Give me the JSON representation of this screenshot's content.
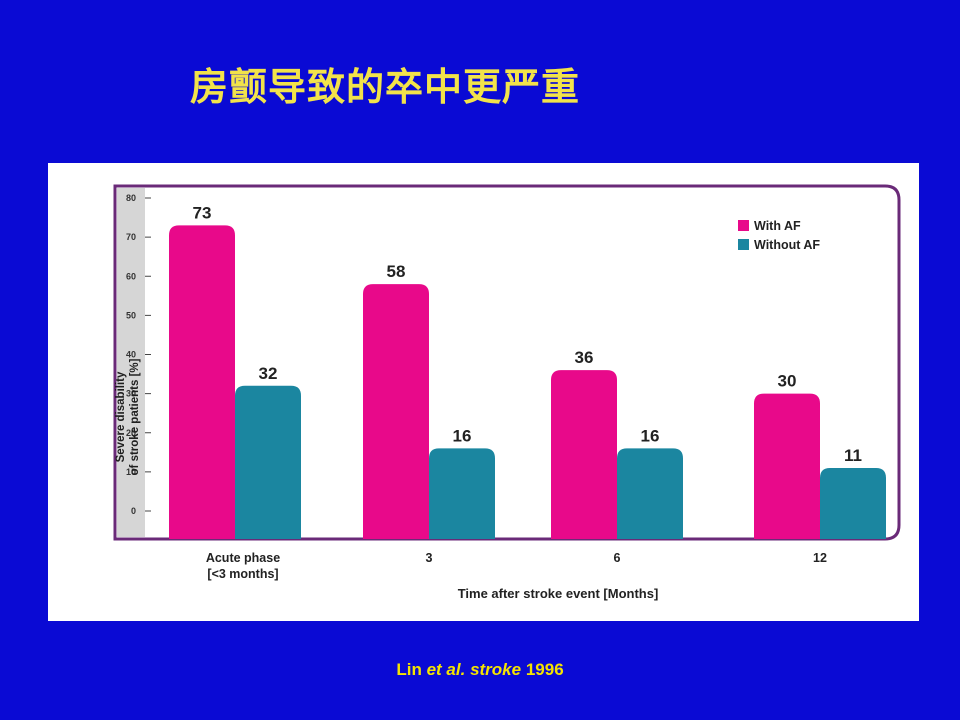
{
  "slide": {
    "title": "房颤导致的卒中更严重",
    "citation": {
      "author": "Lin",
      "etal": "et al.",
      "journal": "stroke",
      "year": "1996"
    }
  },
  "colors": {
    "background": "#0a0ad4",
    "title": "#f2e34a",
    "with_af": "#e8098a",
    "without_af": "#1b86a0",
    "frame": "#6a2a78"
  },
  "chart_data": {
    "type": "bar",
    "ylabel_line1": "Severe disability",
    "ylabel_line2": "of stroke patients [%]",
    "xlabel": "Time after stroke event [Months]",
    "categories": [
      [
        "Acute phase",
        "[<3 months]"
      ],
      [
        "3"
      ],
      [
        "6"
      ],
      [
        "12"
      ]
    ],
    "series": [
      {
        "name": "With AF",
        "color": "#e8098a",
        "values": [
          73,
          58,
          36,
          30
        ]
      },
      {
        "name": "Without AF",
        "color": "#1b86a0",
        "values": [
          32,
          16,
          16,
          11
        ]
      }
    ],
    "ylim": [
      0,
      80
    ],
    "yticks": [
      0,
      10,
      20,
      30,
      40,
      50,
      60,
      70,
      80
    ],
    "legend_position": "top-right",
    "grid": false
  }
}
